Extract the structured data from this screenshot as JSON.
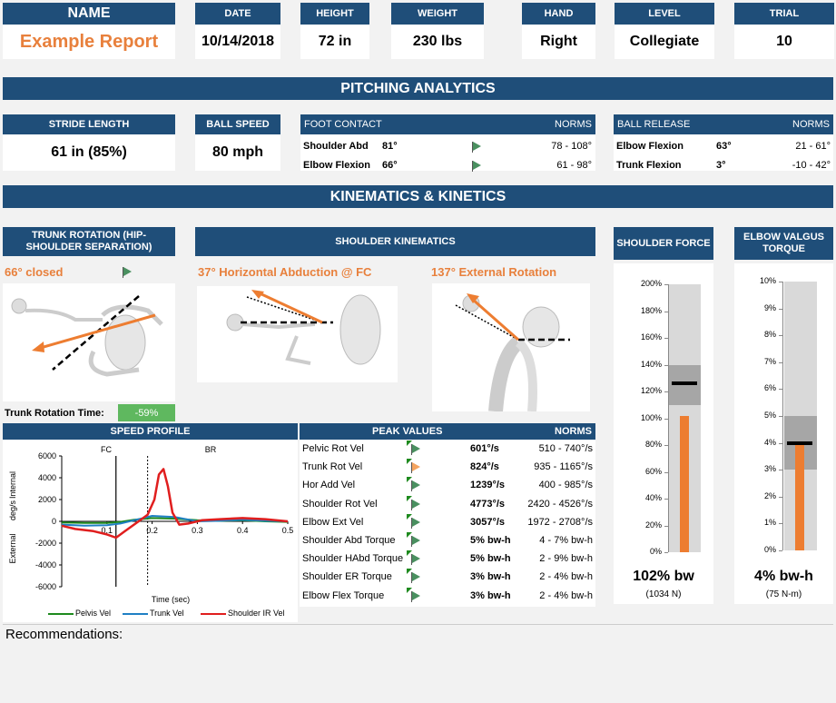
{
  "header": {
    "name_label": "NAME",
    "name_value": "Example Report",
    "date_label": "DATE",
    "date_value": "10/14/2018",
    "height_label": "HEIGHT",
    "height_value": "72 in",
    "weight_label": "WEIGHT",
    "weight_value": "230 lbs",
    "hand_label": "HAND",
    "hand_value": "Right",
    "level_label": "LEVEL",
    "level_value": "Collegiate",
    "trial_label": "TRIAL",
    "trial_value": "10"
  },
  "pitching_title": "PITCHING ANALYTICS",
  "stride": {
    "label": "STRIDE LENGTH",
    "value": "61 in (85%)"
  },
  "ball_speed": {
    "label": "BALL SPEED",
    "value": "80 mph"
  },
  "foot_contact": {
    "label": "FOOT CONTACT",
    "norms_label": "NORMS",
    "rows": [
      {
        "name": "Shoulder Abd",
        "value": "81°",
        "norm": "78 - 108°"
      },
      {
        "name": "Elbow Flexion",
        "value": "66°",
        "norm": "61 - 98°"
      }
    ]
  },
  "ball_release": {
    "label": "BALL RELEASE",
    "norms_label": "NORMS",
    "rows": [
      {
        "name": "Elbow Flexion",
        "value": "63°",
        "norm": "21 - 61°"
      },
      {
        "name": "Trunk Flexion",
        "value": "3°",
        "norm": "-10 - 42°"
      }
    ]
  },
  "kinematics_title": "KINEMATICS & KINETICS",
  "trunk_rotation": {
    "label": "TRUNK ROTATION (HIP-SHOULDER SEPARATION)",
    "value": "66° closed",
    "time_label": "Trunk Rotation Time:",
    "time_value": "-59%"
  },
  "shoulder_kinematics": {
    "label": "SHOULDER KINEMATICS",
    "left_value": "37° Horizontal Abduction @ FC",
    "right_value": "137° External Rotation"
  },
  "shoulder_force": {
    "label": "SHOULDER FORCE",
    "ticks": [
      "200%",
      "180%",
      "160%",
      "140%",
      "120%",
      "100%",
      "80%",
      "60%",
      "40%",
      "20%",
      "0%"
    ],
    "value": "102% bw",
    "sub": "(1034 N)",
    "level": 1.02,
    "norm_low": 1.1,
    "norm_high": 1.4,
    "target": 1.26,
    "axis_max": 2.0
  },
  "elbow_torque": {
    "label": "ELBOW VALGUS TORQUE",
    "ticks": [
      "10%",
      "9%",
      "8%",
      "7%",
      "6%",
      "5%",
      "4%",
      "3%",
      "2%",
      "1%",
      "0%"
    ],
    "value": "4% bw-h",
    "sub": "(75 N-m)",
    "level": 0.04,
    "norm_low": 0.03,
    "norm_high": 0.05,
    "target": 0.04,
    "axis_max": 0.1
  },
  "speed_profile": {
    "label": "SPEED PROFILE",
    "fc_label": "FC",
    "br_label": "BR",
    "ylabel": "deg/s",
    "y_top_label": "Internal",
    "y_bottom_label": "External",
    "xlabel": "Time (sec)",
    "legend": [
      "Pelvis Vel",
      "Trunk Vel",
      "Shoulder IR Vel"
    ]
  },
  "peak_values": {
    "label": "PEAK VALUES",
    "norms_label": "NORMS",
    "rows": [
      {
        "name": "Pelvic Rot Vel",
        "value": "601°/s",
        "norm": "510 - 740°/s",
        "flag": "green"
      },
      {
        "name": "Trunk Rot Vel",
        "value": "824°/s",
        "norm": "935 - 1165°/s",
        "flag": "orange"
      },
      {
        "name": "Hor Add Vel",
        "value": "1239°/s",
        "norm": "400 - 985°/s",
        "flag": "green"
      },
      {
        "name": "Shoulder Rot Vel",
        "value": "4773°/s",
        "norm": "2420 - 4526°/s",
        "flag": "green"
      },
      {
        "name": "Elbow Ext Vel",
        "value": "3057°/s",
        "norm": "1972 - 2708°/s",
        "flag": "green"
      },
      {
        "name": "Shoulder Abd Torque",
        "value": "5% bw-h",
        "norm": "4 - 7% bw-h",
        "flag": "green"
      },
      {
        "name": "Shoulder HAbd Torque",
        "value": "5% bw-h",
        "norm": "2 - 9% bw-h",
        "flag": "green"
      },
      {
        "name": "Shoulder ER Torque",
        "value": "3% bw-h",
        "norm": "2 - 4% bw-h",
        "flag": "green"
      },
      {
        "name": "Elbow Flex Torque",
        "value": "3% bw-h",
        "norm": "2 - 4% bw-h",
        "flag": "green"
      }
    ]
  },
  "recommendations_label": "Recommendations:",
  "chart_data": {
    "type": "line",
    "title": "",
    "xlabel": "Time (sec)",
    "ylabel": "deg/s",
    "xlim": [
      0,
      0.5
    ],
    "ylim": [
      -6000,
      6000
    ],
    "x_ticks": [
      "0.1",
      "0.2",
      "0.3",
      "0.4",
      "0.5"
    ],
    "y_ticks": [
      "6000",
      "4000",
      "2000",
      "0",
      "-2000",
      "-4000",
      "-6000"
    ],
    "fc_x": 0.12,
    "br_x": 0.19,
    "series": [
      {
        "name": "Pelvis Vel",
        "color": "#1e8a1e",
        "x": [
          0,
          0.05,
          0.1,
          0.13,
          0.16,
          0.2,
          0.25,
          0.3,
          0.35,
          0.4,
          0.45,
          0.5
        ],
        "y": [
          -100,
          -150,
          -150,
          -50,
          150,
          300,
          250,
          100,
          50,
          100,
          0,
          -50
        ]
      },
      {
        "name": "Trunk Vel",
        "color": "#1f7fc4",
        "x": [
          0,
          0.05,
          0.1,
          0.13,
          0.16,
          0.2,
          0.25,
          0.3,
          0.35,
          0.4,
          0.45,
          0.5
        ],
        "y": [
          -300,
          -400,
          -350,
          -200,
          100,
          500,
          400,
          0,
          50,
          150,
          50,
          0
        ]
      },
      {
        "name": "Shoulder IR Vel",
        "color": "#e01e1e",
        "x": [
          0,
          0.03,
          0.07,
          0.1,
          0.12,
          0.14,
          0.17,
          0.19,
          0.205,
          0.215,
          0.225,
          0.235,
          0.245,
          0.26,
          0.28,
          0.31,
          0.35,
          0.4,
          0.45,
          0.5
        ],
        "y": [
          -400,
          -700,
          -900,
          -1200,
          -1500,
          -900,
          0,
          600,
          2000,
          4300,
          4800,
          3200,
          800,
          -300,
          -200,
          100,
          200,
          300,
          200,
          0
        ]
      }
    ]
  }
}
